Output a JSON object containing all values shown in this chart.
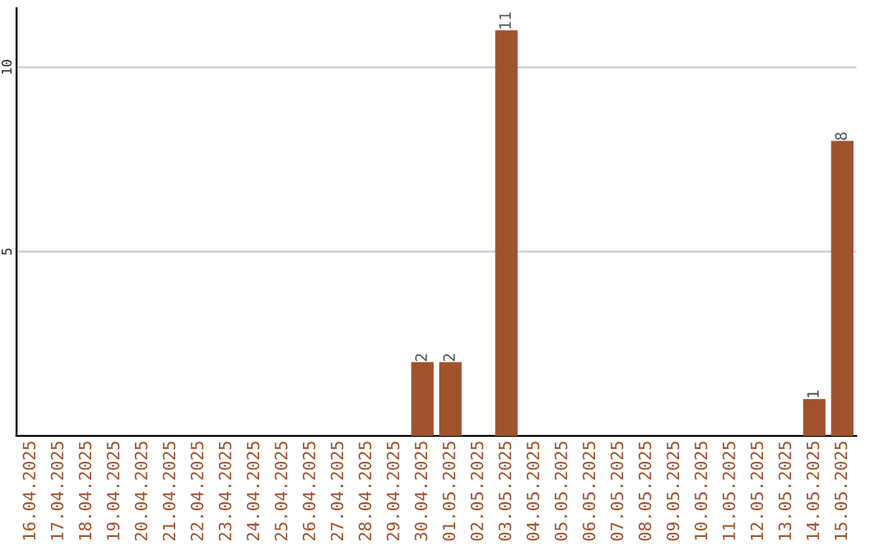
{
  "chart_data": {
    "type": "bar",
    "categories": [
      "16.04.2025",
      "17.04.2025",
      "18.04.2025",
      "19.04.2025",
      "20.04.2025",
      "21.04.2025",
      "22.04.2025",
      "23.04.2025",
      "24.04.2025",
      "25.04.2025",
      "26.04.2025",
      "27.04.2025",
      "28.04.2025",
      "29.04.2025",
      "30.04.2025",
      "01.05.2025",
      "02.05.2025",
      "03.05.2025",
      "04.05.2025",
      "05.05.2025",
      "06.05.2025",
      "07.05.2025",
      "08.05.2025",
      "09.05.2025",
      "10.05.2025",
      "11.05.2025",
      "12.05.2025",
      "13.05.2025",
      "14.05.2025",
      "15.05.2025"
    ],
    "values": [
      0,
      0,
      0,
      0,
      0,
      0,
      0,
      0,
      0,
      0,
      0,
      0,
      0,
      0,
      2,
      2,
      0,
      11,
      0,
      0,
      0,
      0,
      0,
      0,
      0,
      0,
      0,
      0,
      1,
      8
    ],
    "value_labels": [
      null,
      null,
      null,
      null,
      null,
      null,
      null,
      null,
      null,
      null,
      null,
      null,
      null,
      null,
      "2",
      "2",
      null,
      "11",
      null,
      null,
      null,
      null,
      null,
      null,
      null,
      null,
      null,
      null,
      "1",
      "8"
    ],
    "color": "#a0522d",
    "ylim": [
      0,
      11.6
    ],
    "yticks": [
      5,
      10
    ],
    "grid": "y"
  }
}
